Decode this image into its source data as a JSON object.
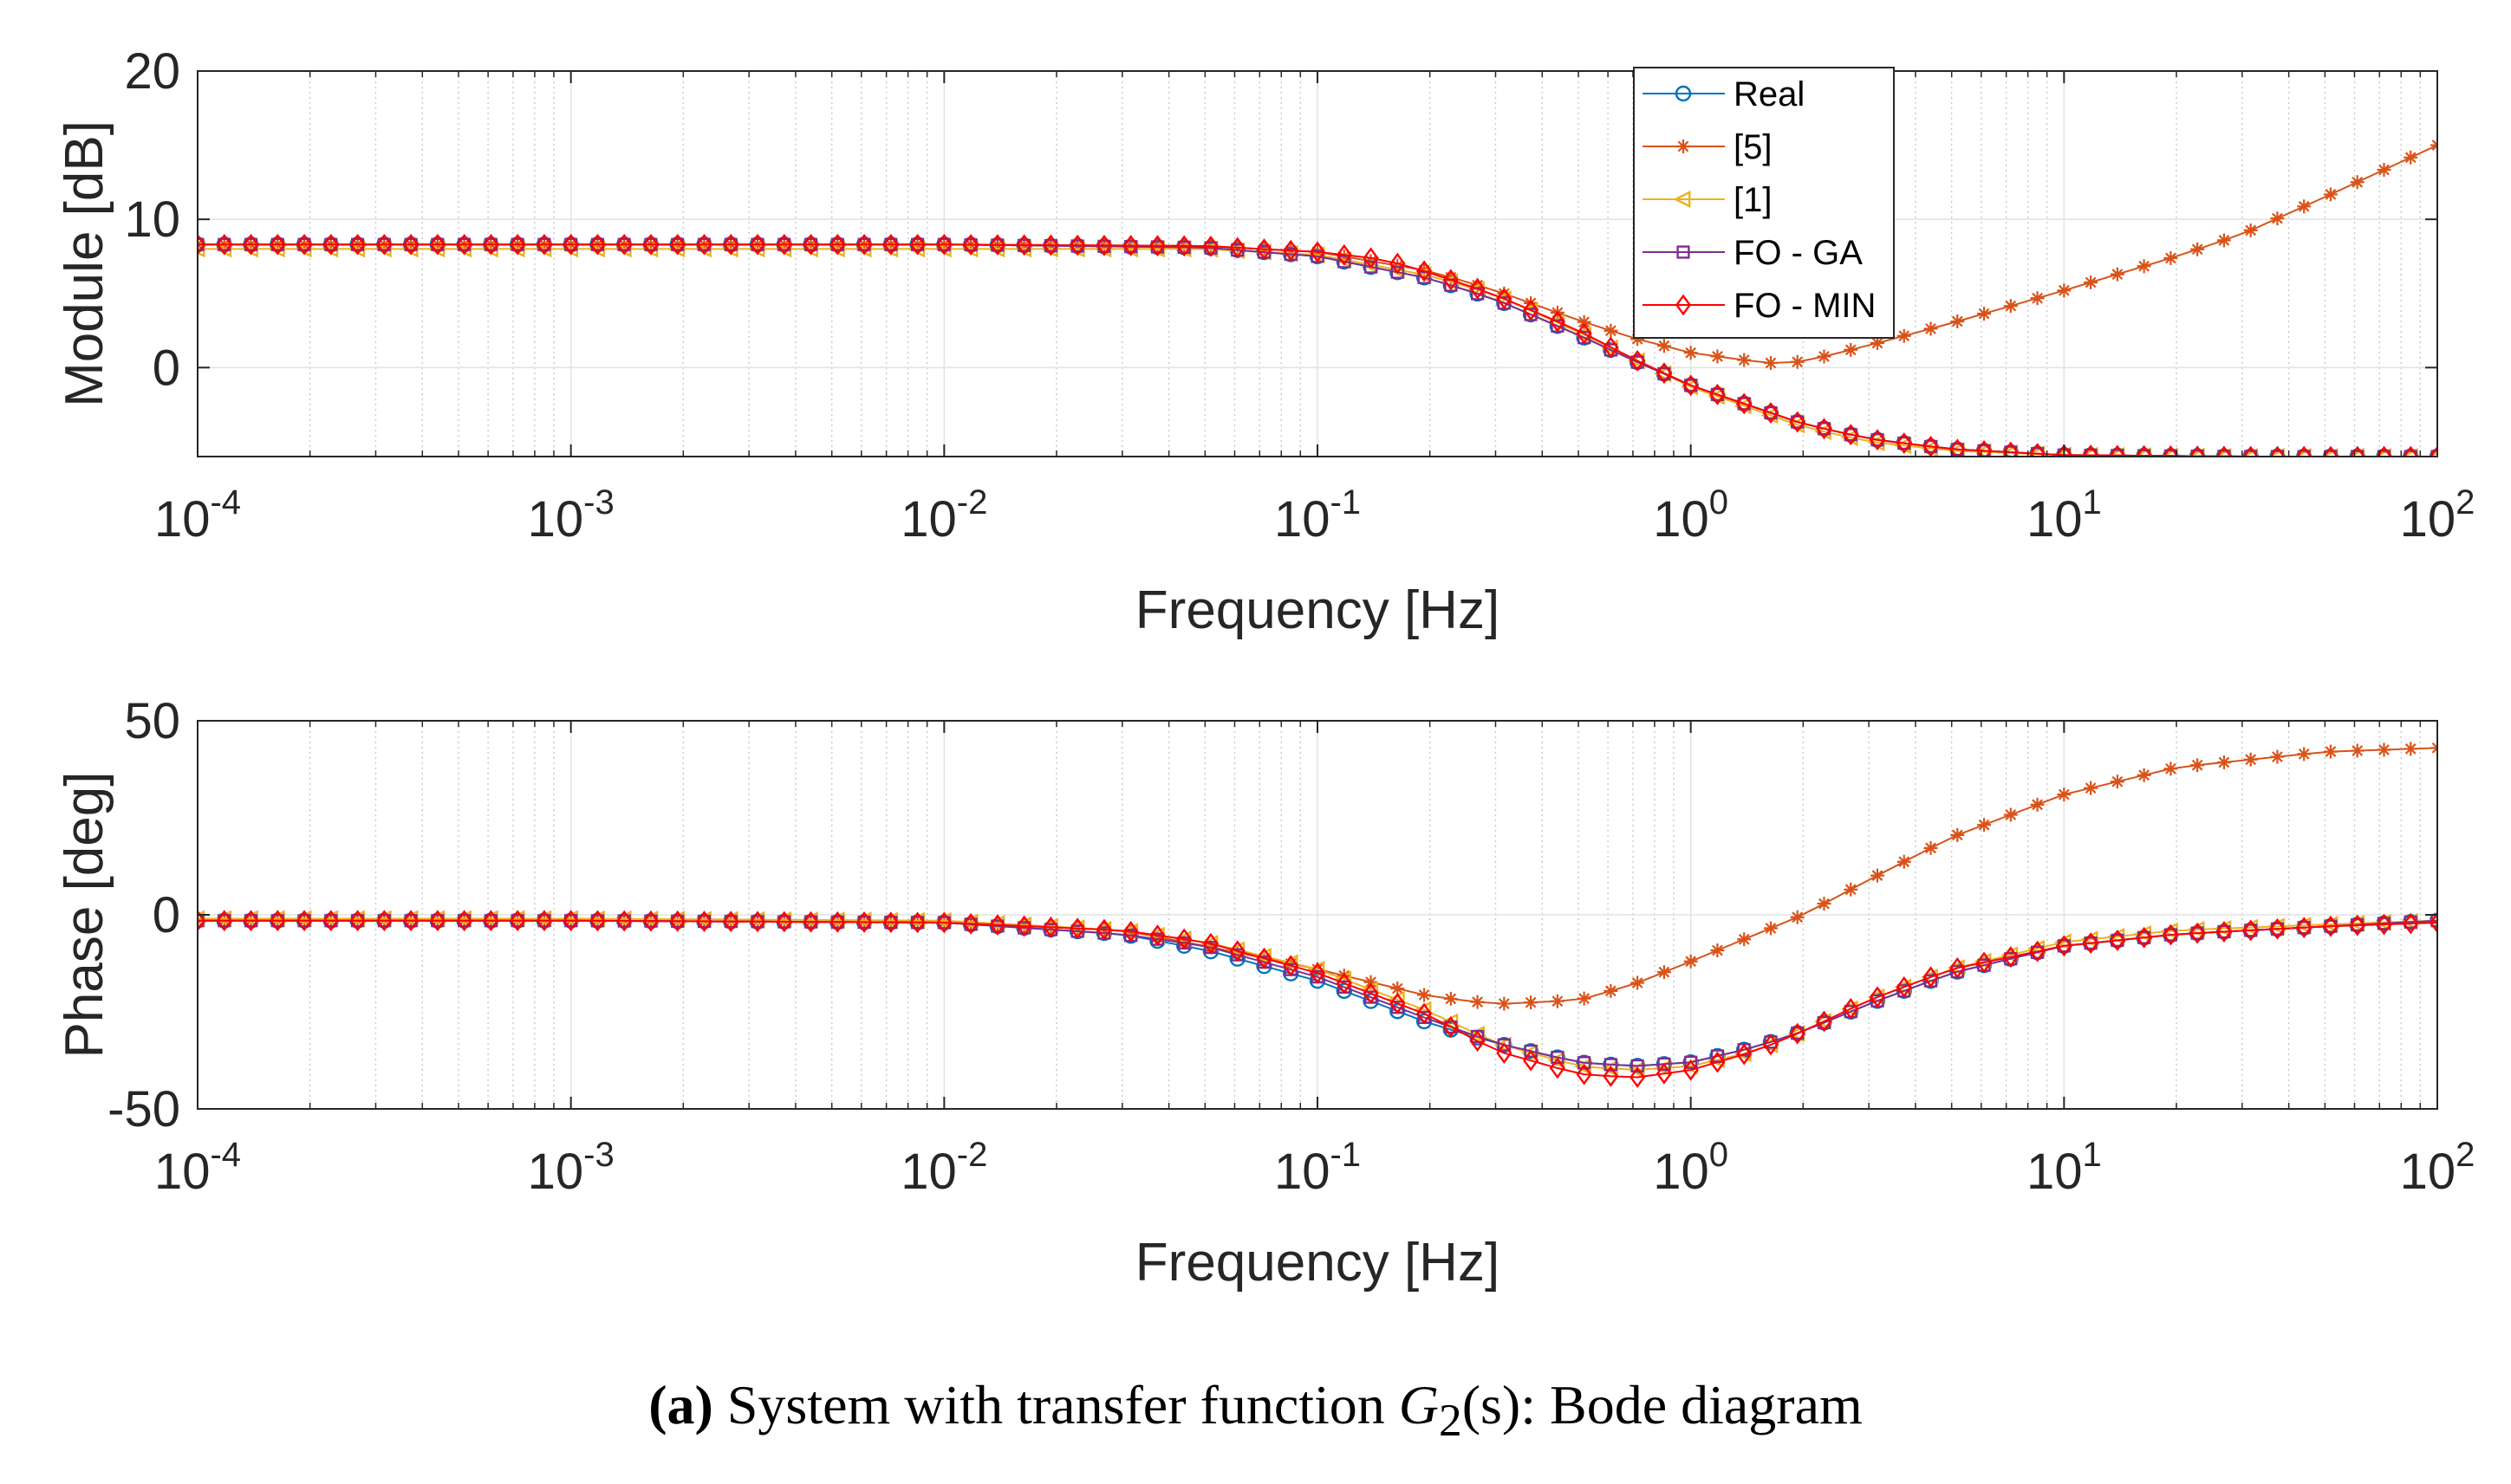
{
  "chart_data": [
    {
      "type": "line",
      "id": "module",
      "ylabel": "Module [dB]",
      "xlabel": "Frequency [Hz]",
      "xscale": "log",
      "xlim": [
        0.0001,
        100
      ],
      "ylim": [
        -6,
        20
      ],
      "yticks": [
        0,
        10,
        20
      ],
      "ytick_labels": [
        "0",
        "10",
        "20"
      ],
      "xtick_labels": [
        {
          "base": "10",
          "exp": "-4"
        },
        {
          "base": "10",
          "exp": "-3"
        },
        {
          "base": "10",
          "exp": "-2"
        },
        {
          "base": "10",
          "exp": "-1"
        },
        {
          "base": "10",
          "exp": "0"
        },
        {
          "base": "10",
          "exp": "1"
        },
        {
          "base": "10",
          "exp": "2"
        }
      ],
      "grid": true,
      "legend_position": "top-center",
      "series": [
        {
          "name": "Real",
          "color": "#0072BD",
          "marker": "circle",
          "points": [
            [
              0.0001,
              8.3
            ],
            [
              0.01,
              8.3
            ],
            [
              0.05,
              8.1
            ],
            [
              0.1,
              7.5
            ],
            [
              0.2,
              6.0
            ],
            [
              0.3,
              4.6
            ],
            [
              0.5,
              2.2
            ],
            [
              0.7,
              0.5
            ],
            [
              1,
              -1.2
            ],
            [
              2,
              -3.8
            ],
            [
              3,
              -4.8
            ],
            [
              5,
              -5.5
            ],
            [
              10,
              -5.9
            ],
            [
              30,
              -6.0
            ],
            [
              100,
              -6.0
            ]
          ]
        },
        {
          "name": "[5]",
          "color": "#D95319",
          "marker": "asterisk",
          "points": [
            [
              0.0001,
              8.3
            ],
            [
              0.01,
              8.3
            ],
            [
              0.05,
              8.2
            ],
            [
              0.1,
              7.8
            ],
            [
              0.2,
              6.5
            ],
            [
              0.3,
              5.2
            ],
            [
              0.5,
              3.2
            ],
            [
              0.7,
              2.0
            ],
            [
              1,
              1.0
            ],
            [
              1.6,
              0.3
            ],
            [
              2,
              0.4
            ],
            [
              3,
              1.5
            ],
            [
              5,
              3.0
            ],
            [
              10,
              5.2
            ],
            [
              20,
              7.5
            ],
            [
              30,
              9.0
            ],
            [
              50,
              11.5
            ],
            [
              100,
              15.0
            ]
          ]
        },
        {
          "name": "[1]",
          "color": "#EDB120",
          "marker": "triangle-left",
          "points": [
            [
              0.0001,
              8.0
            ],
            [
              0.01,
              8.0
            ],
            [
              0.05,
              8.0
            ],
            [
              0.1,
              7.6
            ],
            [
              0.2,
              6.2
            ],
            [
              0.3,
              4.9
            ],
            [
              0.5,
              2.4
            ],
            [
              0.7,
              0.6
            ],
            [
              1,
              -1.3
            ],
            [
              2,
              -4.0
            ],
            [
              3,
              -5.0
            ],
            [
              5,
              -5.6
            ],
            [
              10,
              -5.9
            ],
            [
              30,
              -6.0
            ],
            [
              100,
              -6.0
            ]
          ]
        },
        {
          "name": "FO - GA",
          "color": "#7E2F8E",
          "marker": "square",
          "points": [
            [
              0.0001,
              8.3
            ],
            [
              0.01,
              8.3
            ],
            [
              0.05,
              8.1
            ],
            [
              0.1,
              7.5
            ],
            [
              0.2,
              6.0
            ],
            [
              0.3,
              4.6
            ],
            [
              0.5,
              2.2
            ],
            [
              0.7,
              0.5
            ],
            [
              1,
              -1.2
            ],
            [
              2,
              -3.8
            ],
            [
              3,
              -4.8
            ],
            [
              5,
              -5.5
            ],
            [
              10,
              -5.9
            ],
            [
              30,
              -6.0
            ],
            [
              100,
              -6.0
            ]
          ]
        },
        {
          "name": "FO - MIN",
          "color": "#FF0000",
          "marker": "diamond",
          "points": [
            [
              0.0001,
              8.3
            ],
            [
              0.01,
              8.3
            ],
            [
              0.05,
              8.2
            ],
            [
              0.1,
              7.8
            ],
            [
              0.15,
              7.3
            ],
            [
              0.2,
              6.4
            ],
            [
              0.3,
              4.9
            ],
            [
              0.5,
              2.5
            ],
            [
              0.7,
              0.6
            ],
            [
              1,
              -1.2
            ],
            [
              2,
              -3.8
            ],
            [
              3,
              -4.8
            ],
            [
              5,
              -5.5
            ],
            [
              10,
              -5.9
            ],
            [
              30,
              -6.0
            ],
            [
              100,
              -6.0
            ]
          ]
        }
      ]
    },
    {
      "type": "line",
      "id": "phase",
      "ylabel": "Phase [deg]",
      "xlabel": "Frequency [Hz]",
      "xscale": "log",
      "xlim": [
        0.0001,
        100
      ],
      "ylim": [
        -50,
        50
      ],
      "yticks": [
        -50,
        0,
        50
      ],
      "ytick_labels": [
        "-50",
        "0",
        "50"
      ],
      "xtick_labels": [
        {
          "base": "10",
          "exp": "-4"
        },
        {
          "base": "10",
          "exp": "-3"
        },
        {
          "base": "10",
          "exp": "-2"
        },
        {
          "base": "10",
          "exp": "-1"
        },
        {
          "base": "10",
          "exp": "0"
        },
        {
          "base": "10",
          "exp": "1"
        },
        {
          "base": "10",
          "exp": "2"
        }
      ],
      "grid": true,
      "series": [
        {
          "name": "Real",
          "color": "#0072BD",
          "marker": "circle",
          "points": [
            [
              0.0001,
              -1.5
            ],
            [
              0.001,
              -1.5
            ],
            [
              0.01,
              -2.0
            ],
            [
              0.03,
              -5
            ],
            [
              0.05,
              -9
            ],
            [
              0.1,
              -17
            ],
            [
              0.2,
              -28
            ],
            [
              0.3,
              -33
            ],
            [
              0.5,
              -38
            ],
            [
              0.7,
              -39
            ],
            [
              1,
              -38
            ],
            [
              1.5,
              -34
            ],
            [
              2,
              -30
            ],
            [
              3,
              -23
            ],
            [
              5,
              -15
            ],
            [
              10,
              -8
            ],
            [
              20,
              -5
            ],
            [
              50,
              -3
            ],
            [
              100,
              -1.5
            ]
          ]
        },
        {
          "name": "[5]",
          "color": "#D95319",
          "marker": "asterisk",
          "points": [
            [
              0.0001,
              -1.5
            ],
            [
              0.001,
              -1.5
            ],
            [
              0.01,
              -2.0
            ],
            [
              0.03,
              -4
            ],
            [
              0.05,
              -8
            ],
            [
              0.1,
              -14
            ],
            [
              0.2,
              -21
            ],
            [
              0.3,
              -23
            ],
            [
              0.5,
              -22
            ],
            [
              0.7,
              -18
            ],
            [
              1,
              -12
            ],
            [
              2,
              0
            ],
            [
              3,
              9
            ],
            [
              5,
              20
            ],
            [
              10,
              31
            ],
            [
              20,
              38
            ],
            [
              50,
              42
            ],
            [
              100,
              43
            ]
          ]
        },
        {
          "name": "[1]",
          "color": "#EDB120",
          "marker": "triangle-left",
          "points": [
            [
              0.0001,
              -1.0
            ],
            [
              0.001,
              -1.0
            ],
            [
              0.01,
              -1.5
            ],
            [
              0.03,
              -4
            ],
            [
              0.05,
              -7
            ],
            [
              0.1,
              -14
            ],
            [
              0.2,
              -25
            ],
            [
              0.3,
              -33
            ],
            [
              0.5,
              -39
            ],
            [
              0.7,
              -40
            ],
            [
              1,
              -39
            ],
            [
              1.5,
              -35
            ],
            [
              2,
              -30
            ],
            [
              3,
              -22
            ],
            [
              5,
              -14
            ],
            [
              10,
              -7
            ],
            [
              20,
              -4
            ],
            [
              50,
              -2.5
            ],
            [
              100,
              -1.5
            ]
          ]
        },
        {
          "name": "FO - GA",
          "color": "#7E2F8E",
          "marker": "square",
          "points": [
            [
              0.0001,
              -1.5
            ],
            [
              0.001,
              -1.5
            ],
            [
              0.01,
              -2.0
            ],
            [
              0.03,
              -5
            ],
            [
              0.05,
              -8
            ],
            [
              0.1,
              -16
            ],
            [
              0.2,
              -27
            ],
            [
              0.3,
              -33
            ],
            [
              0.5,
              -38
            ],
            [
              0.7,
              -39
            ],
            [
              1,
              -38
            ],
            [
              1.5,
              -34
            ],
            [
              2,
              -30
            ],
            [
              3,
              -23
            ],
            [
              5,
              -15
            ],
            [
              10,
              -8
            ],
            [
              20,
              -5
            ],
            [
              50,
              -3
            ],
            [
              100,
              -1.5
            ]
          ]
        },
        {
          "name": "FO - MIN",
          "color": "#FF0000",
          "marker": "diamond",
          "points": [
            [
              0.0001,
              -1.5
            ],
            [
              0.001,
              -1.5
            ],
            [
              0.01,
              -2.0
            ],
            [
              0.03,
              -4
            ],
            [
              0.05,
              -7
            ],
            [
              0.1,
              -15
            ],
            [
              0.2,
              -26
            ],
            [
              0.3,
              -35
            ],
            [
              0.5,
              -41
            ],
            [
              0.7,
              -42
            ],
            [
              1,
              -40
            ],
            [
              1.5,
              -35
            ],
            [
              2,
              -30
            ],
            [
              3,
              -22
            ],
            [
              5,
              -14
            ],
            [
              10,
              -8
            ],
            [
              20,
              -5
            ],
            [
              50,
              -3
            ],
            [
              100,
              -2
            ]
          ]
        }
      ]
    }
  ],
  "caption": {
    "label": "(a)",
    "text": "System with transfer function",
    "symbol_main": "G",
    "symbol_sub": "2",
    "symbol_arg": "(s)",
    "suffix": ": Bode diagram"
  }
}
